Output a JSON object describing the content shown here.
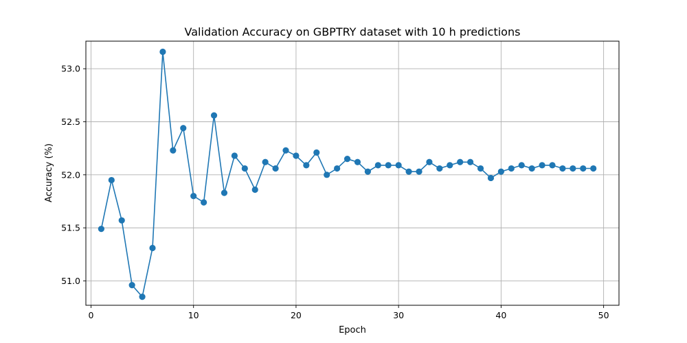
{
  "chart_data": {
    "type": "line",
    "title": "Validation Accuracy on GBPTRY dataset with 10 h predictions",
    "xlabel": "Epoch",
    "ylabel": "Accuracy (%)",
    "xlim": [
      -0.5,
      51.5
    ],
    "ylim": [
      50.77,
      53.26
    ],
    "xticks": [
      0,
      10,
      20,
      30,
      40,
      50
    ],
    "yticks": [
      51.0,
      51.5,
      52.0,
      52.5,
      53.0
    ],
    "xtick_labels": [
      "0",
      "10",
      "20",
      "30",
      "40",
      "50"
    ],
    "ytick_labels": [
      "51.0",
      "51.5",
      "52.0",
      "52.5",
      "53.0"
    ],
    "grid": true,
    "color": "#1f77b4",
    "series": [
      {
        "x": [
          1,
          2,
          3,
          4,
          5,
          6,
          7,
          8,
          9,
          10,
          11,
          12,
          13,
          14,
          15,
          16,
          17,
          18,
          19,
          20,
          21,
          22,
          23,
          24,
          25,
          26,
          27,
          28,
          29,
          30,
          31,
          32,
          33,
          34,
          35,
          36,
          37,
          38,
          39,
          40,
          41,
          42,
          43,
          44,
          45,
          46,
          47,
          48,
          49
        ],
        "values": [
          51.49,
          51.95,
          51.57,
          50.96,
          50.85,
          51.31,
          53.16,
          52.23,
          52.44,
          51.8,
          51.74,
          52.56,
          51.83,
          52.18,
          52.06,
          51.86,
          52.12,
          52.06,
          52.23,
          52.18,
          52.09,
          52.21,
          52.0,
          52.06,
          52.15,
          52.12,
          52.03,
          52.09,
          52.09,
          52.09,
          52.03,
          52.03,
          52.12,
          52.06,
          52.09,
          52.12,
          52.12,
          52.06,
          51.97,
          52.03,
          52.06,
          52.09,
          52.06,
          52.09,
          52.09,
          52.06,
          52.06,
          52.06,
          52.06
        ]
      }
    ]
  }
}
